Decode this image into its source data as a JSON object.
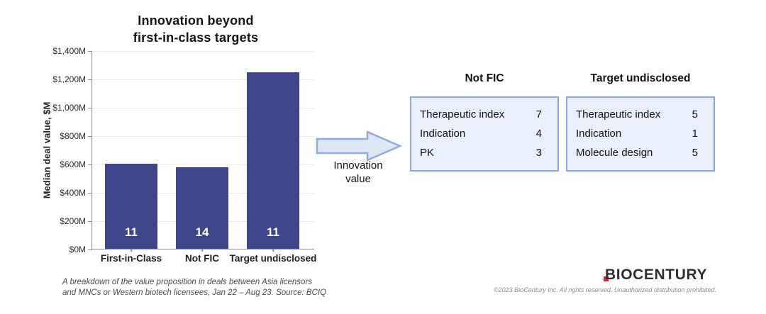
{
  "chart_data": {
    "type": "bar",
    "title": "Innovation beyond first-in-class targets",
    "title_lines": [
      "Innovation beyond",
      "first-in-class targets"
    ],
    "ylabel": "Median deal value, $M",
    "xlabel": "",
    "categories": [
      "First-in-Class",
      "Not FIC",
      "Target undisclosed"
    ],
    "values": [
      600,
      575,
      1245
    ],
    "bar_counts": [
      "11",
      "14",
      "11"
    ],
    "ylim": [
      0,
      1400
    ],
    "ytick_step": 200,
    "ytick_labels": [
      "$0M",
      "$200M",
      "$400M",
      "$600M",
      "$800M",
      "$1,000M",
      "$1,200M",
      "$1,400M"
    ],
    "grid": true,
    "legend": "none",
    "bar_color": "#3e4589"
  },
  "annotation": {
    "arrow_label_lines": [
      "Innovation",
      "value"
    ],
    "tables": [
      {
        "title": "Not FIC",
        "rows": [
          [
            "Therapeutic index",
            "7"
          ],
          [
            "Indication",
            "4"
          ],
          [
            "PK",
            "3"
          ]
        ]
      },
      {
        "title": "Target undisclosed",
        "rows": [
          [
            "Therapeutic index",
            "5"
          ],
          [
            "Indication",
            "1"
          ],
          [
            "Molecule design",
            "5"
          ]
        ]
      }
    ]
  },
  "footer": {
    "caption_lines": [
      "A breakdown of the value proposition in deals between Asia licensors",
      "and MNCs or Western biotech licensees, Jan 22 – Aug 23. Source: BCIQ"
    ],
    "logo": "BIOCENTURY",
    "copyright": "©2023 BioCentury Inc. All rights reserved.  Unauthorized distribution prohibited."
  },
  "colors": {
    "bar": "#3e4589",
    "box_fill": "#e9effb",
    "box_border": "#8ca6d9",
    "arrow_fill": "#dce6f5",
    "arrow_border": "#8faadc",
    "logo_red": "#e52330"
  }
}
